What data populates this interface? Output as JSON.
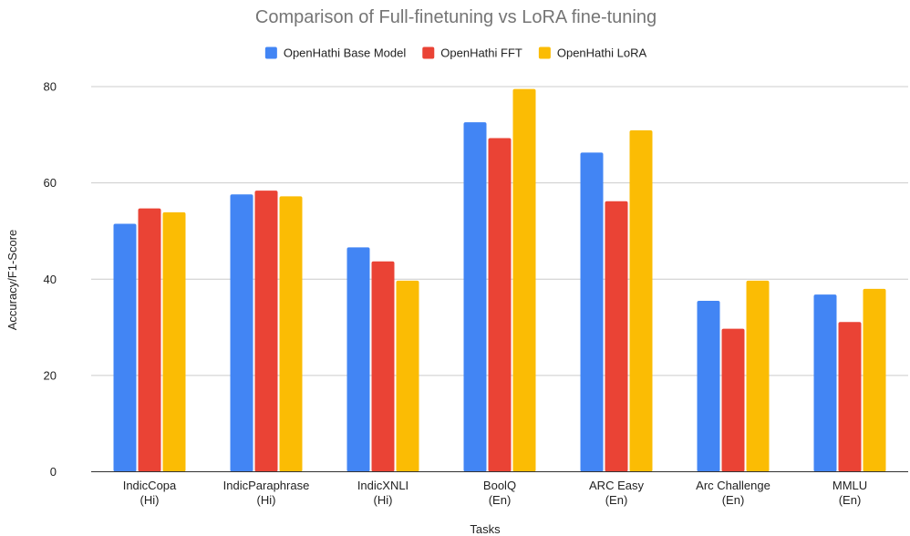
{
  "chart_data": {
    "type": "bar",
    "title": "Comparison of Full-finetuning vs LoRA fine-tuning",
    "xlabel": "Tasks",
    "ylabel": "Accuracy/F1-Score",
    "ylim": [
      0,
      80
    ],
    "yticks": [
      0,
      20,
      40,
      60,
      80
    ],
    "grid": true,
    "legend_position": "top",
    "categories": [
      [
        "IndicCopa",
        "(Hi)"
      ],
      [
        "IndicParaphrase",
        "(Hi)"
      ],
      [
        "IndicXNLI",
        "(Hi)"
      ],
      [
        "BoolQ",
        "(En)"
      ],
      [
        "ARC Easy",
        "(En)"
      ],
      [
        "Arc Challenge",
        "(En)"
      ],
      [
        "MMLU",
        "(En)"
      ]
    ],
    "series": [
      {
        "name": "OpenHathi Base Model",
        "color": "#4285f4",
        "values": [
          51.5,
          57.6,
          46.6,
          72.6,
          66.3,
          35.5,
          36.8
        ]
      },
      {
        "name": "OpenHathi FFT",
        "color": "#ea4335",
        "values": [
          54.7,
          58.4,
          43.7,
          69.3,
          56.2,
          29.7,
          31.1
        ]
      },
      {
        "name": "OpenHathi LoRA",
        "color": "#fbbc04",
        "values": [
          53.9,
          57.2,
          39.7,
          79.5,
          70.9,
          39.7,
          38.0
        ]
      }
    ]
  }
}
